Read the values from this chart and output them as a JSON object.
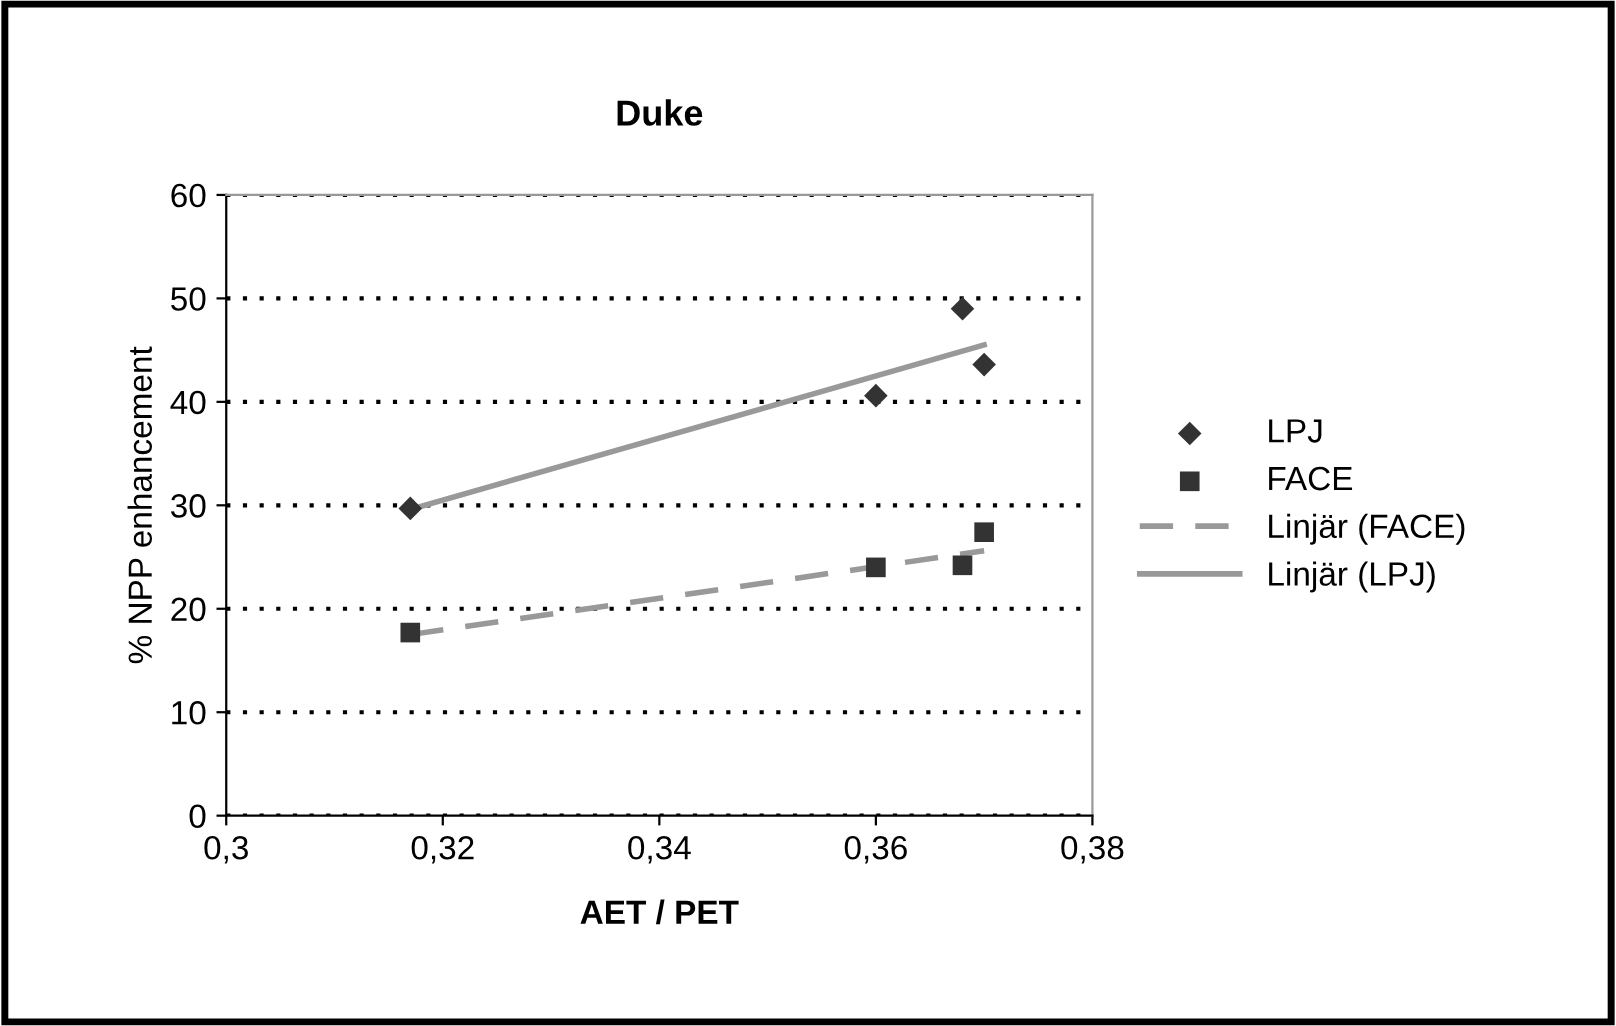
{
  "chart_data": {
    "type": "scatter",
    "title": "Duke",
    "xlabel": "AET / PET",
    "ylabel": "% NPP enhancement",
    "series": [
      {
        "name": "LPJ",
        "color": "#333333",
        "marker": "diamond",
        "x": [
          0.317,
          0.36,
          0.368,
          0.37
        ],
        "values": [
          29.7,
          40.6,
          49.0,
          43.6
        ]
      },
      {
        "name": "FACE",
        "color": "#333333",
        "marker": "square",
        "x": [
          0.317,
          0.36,
          0.368,
          0.37
        ],
        "values": [
          17.7,
          24.0,
          24.2,
          27.4
        ]
      },
      {
        "name": "Linjär (FACE)",
        "type": "line",
        "color": "#999999",
        "line_style": "dashed",
        "marker": "none",
        "x": [
          0.317,
          0.37
        ],
        "values": [
          17.5,
          25.6
        ]
      },
      {
        "name": "Linjär (LPJ)",
        "type": "line",
        "color": "#999999",
        "line_style": "solid",
        "marker": "none",
        "x": [
          0.317,
          0.37
        ],
        "values": [
          29.6,
          45.5
        ]
      }
    ],
    "xlim": [
      0.3,
      0.38
    ],
    "xticks": [
      {
        "value": 0.3,
        "label": "0,3"
      },
      {
        "value": 0.32,
        "label": "0,32"
      },
      {
        "value": 0.34,
        "label": "0,34"
      },
      {
        "value": 0.36,
        "label": "0,36"
      },
      {
        "value": 0.38,
        "label": "0,38"
      }
    ],
    "ylim": [
      0,
      60
    ],
    "yticks": [
      0,
      10,
      20,
      30,
      40,
      50,
      60
    ],
    "grid": "y",
    "legend": "right"
  }
}
